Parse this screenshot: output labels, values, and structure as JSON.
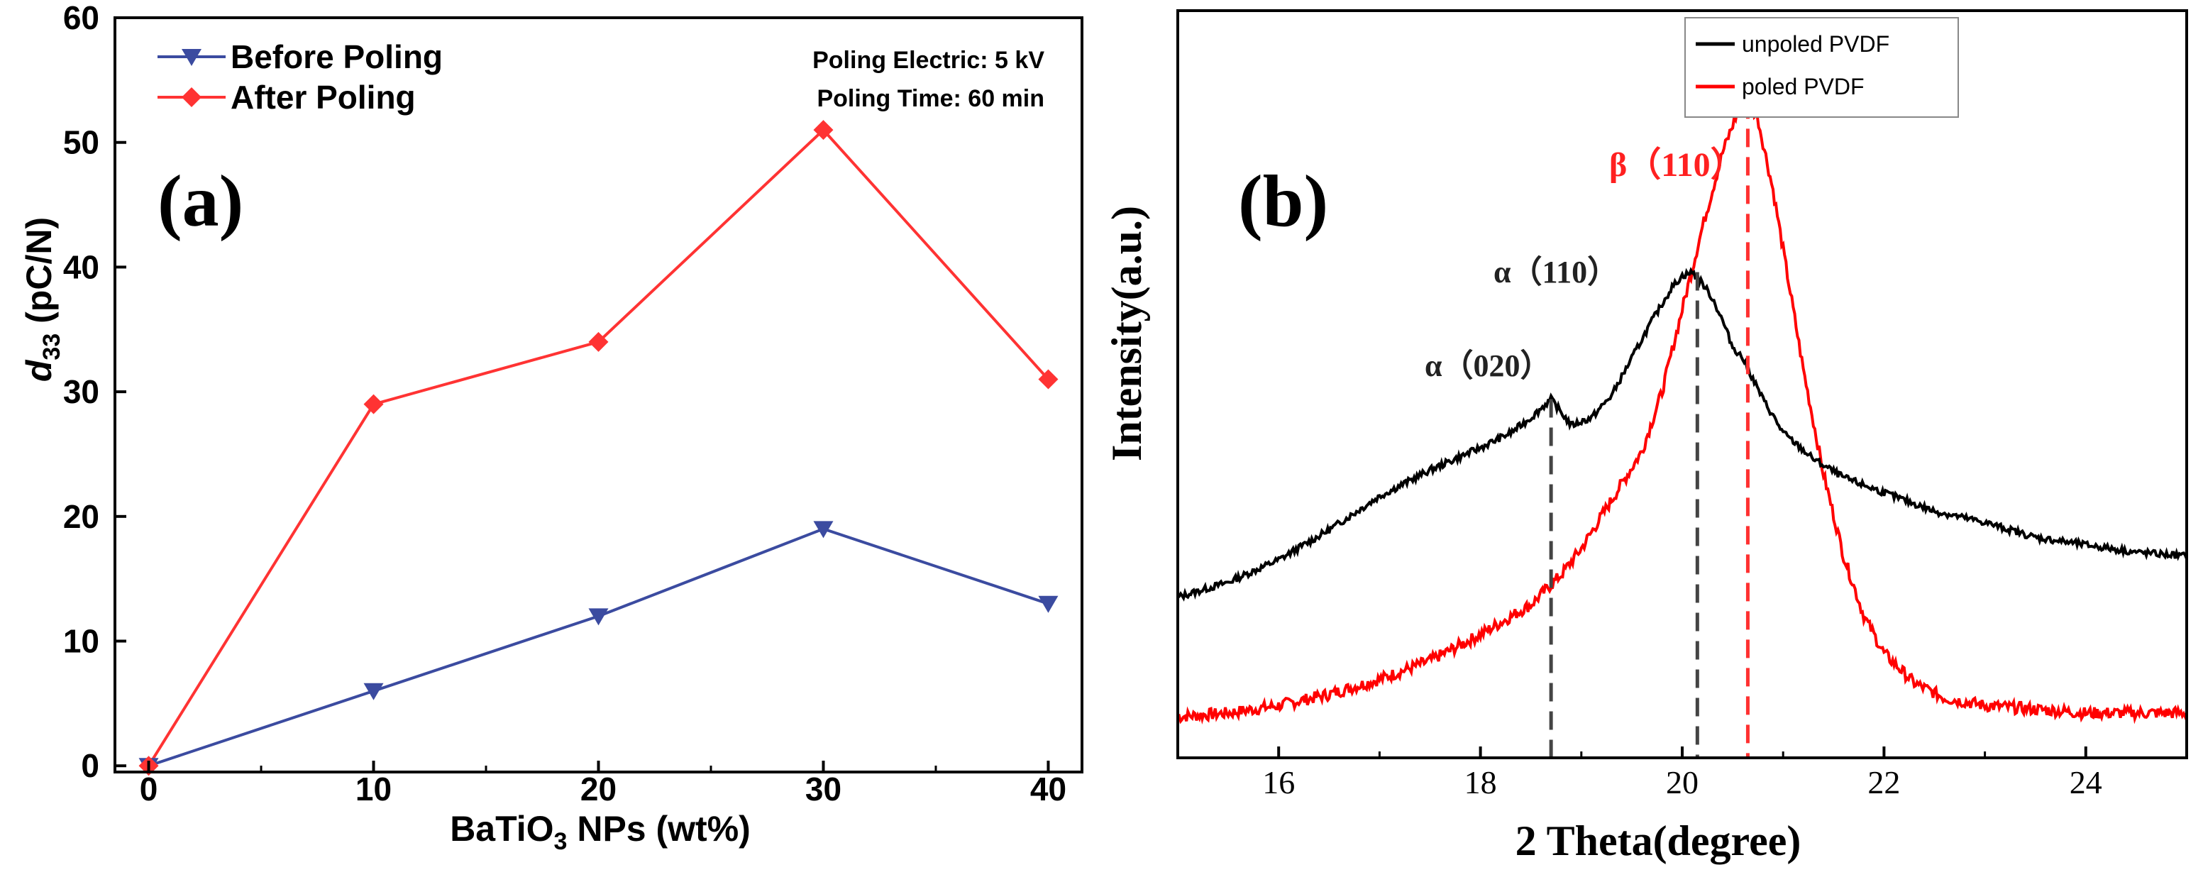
{
  "chart_data": [
    {
      "panel": "a",
      "type": "line",
      "panel_label": "(a)",
      "xlabel": "BaTiO",
      "xlabel_sub": "3",
      "xlabel_rest": " NPs (wt%)",
      "ylabel": "d",
      "ylabel_sub": "33",
      "ylabel_rest": " (pC/N)",
      "xlim": [
        -1.5,
        41.5
      ],
      "ylim": [
        -0.5,
        60
      ],
      "x_ticks": [
        0,
        10,
        20,
        30,
        40
      ],
      "x_minor_ticks": [
        5,
        15,
        25,
        35
      ],
      "y_ticks": [
        0,
        10,
        20,
        30,
        40,
        50,
        60
      ],
      "x_tick_labels": [
        "0",
        "10",
        "20",
        "30",
        "40"
      ],
      "y_tick_labels": [
        "0",
        "10",
        "20",
        "30",
        "40",
        "50",
        "60"
      ],
      "grid": false,
      "legend_position": "top-left",
      "annotation_lines": [
        "Poling Electric: 5 kV",
        "Poling Time: 60 min"
      ],
      "categories": [
        0,
        10,
        20,
        30,
        40
      ],
      "series": [
        {
          "name": "Before Poling",
          "color": "#3b4ba0",
          "marker": "triangle-down",
          "values": [
            0,
            6,
            12,
            19,
            13
          ]
        },
        {
          "name": "After Poling",
          "color": "#ff3333",
          "marker": "diamond",
          "values": [
            0,
            29,
            34,
            51,
            31
          ]
        }
      ]
    },
    {
      "panel": "b",
      "type": "line",
      "panel_label": "(b)",
      "xlabel": "2 Theta(degree)",
      "ylabel": "Intensity(a.u.)",
      "xlim": [
        15,
        25
      ],
      "ylim": [
        0,
        100
      ],
      "x_ticks": [
        16,
        18,
        20,
        22,
        24
      ],
      "x_tick_labels": [
        "16",
        "18",
        "20",
        "22",
        "24"
      ],
      "x_minor_ticks": [
        15,
        17,
        19,
        21,
        23,
        25
      ],
      "y_ticks": [],
      "grid": false,
      "legend_position": "top-right",
      "series": [
        {
          "name": "unpoled PVDF",
          "color": "#000000",
          "x": [
            15.0,
            15.5,
            16.0,
            16.5,
            17.0,
            17.5,
            18.0,
            18.3,
            18.5,
            18.7,
            18.9,
            19.1,
            19.3,
            19.5,
            19.7,
            19.9,
            20.0,
            20.1,
            20.2,
            20.3,
            20.4,
            20.5,
            20.6,
            20.8,
            21.0,
            21.3,
            21.6,
            22.0,
            22.5,
            23.0,
            23.5,
            24.0,
            24.5,
            25.0
          ],
          "values": [
            21.5,
            23.5,
            26.5,
            30.5,
            35.0,
            38.5,
            41.5,
            43.5,
            45.5,
            48.0,
            44.5,
            45.5,
            48.5,
            53.5,
            58.5,
            63.0,
            64.5,
            65.0,
            63.5,
            61.5,
            58.5,
            55.0,
            53.5,
            48.0,
            43.5,
            40.0,
            37.5,
            35.5,
            33.0,
            31.5,
            29.5,
            28.5,
            27.5,
            27.0
          ]
        },
        {
          "name": "poled PVDF",
          "color": "#ff0000",
          "x": [
            15.0,
            15.5,
            16.0,
            16.5,
            17.0,
            17.5,
            18.0,
            18.5,
            18.8,
            19.0,
            19.3,
            19.6,
            19.8,
            20.0,
            20.2,
            20.4,
            20.55,
            20.65,
            20.75,
            20.9,
            21.0,
            21.2,
            21.4,
            21.6,
            21.8,
            22.0,
            22.3,
            22.6,
            23.0,
            23.5,
            24.0,
            24.5,
            25.0
          ],
          "values": [
            5.5,
            6.0,
            7.0,
            8.5,
            10.5,
            13.0,
            16.5,
            20.5,
            24.5,
            28.0,
            34.5,
            41.0,
            49.0,
            60.0,
            71.0,
            81.0,
            86.5,
            88.0,
            85.5,
            76.0,
            68.0,
            52.0,
            38.0,
            27.0,
            19.0,
            14.0,
            10.0,
            8.0,
            7.0,
            6.5,
            6.0,
            6.0,
            6.0
          ]
        }
      ],
      "peak_markers": [
        {
          "label": "α（020）",
          "x": 18.7,
          "color": "#000000",
          "peak_value": 48.0,
          "label_color": "#222222"
        },
        {
          "label": "α（110）",
          "x": 20.15,
          "color": "#000000",
          "peak_value": 65.0,
          "label_color": "#222222"
        },
        {
          "label": "β（110）",
          "x": 20.65,
          "color": "#ff0000",
          "peak_value": 88.0,
          "label_color": "#ff2020"
        }
      ]
    }
  ]
}
